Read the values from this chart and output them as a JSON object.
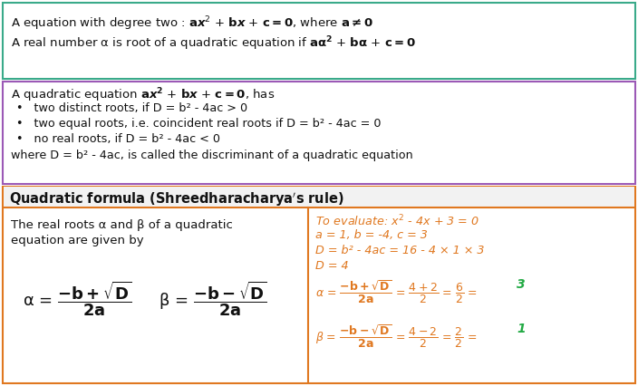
{
  "bg_color": "#ffffff",
  "border_color_teal": "#3aaa8a",
  "border_color_purple": "#9b59b6",
  "border_color_orange": "#e07820",
  "text_black": "#111111",
  "text_orange": "#e07820",
  "text_green": "#22aa44",
  "lw": 1.5,
  "fig_w": 7.04,
  "fig_h": 4.26,
  "dpi": 100
}
